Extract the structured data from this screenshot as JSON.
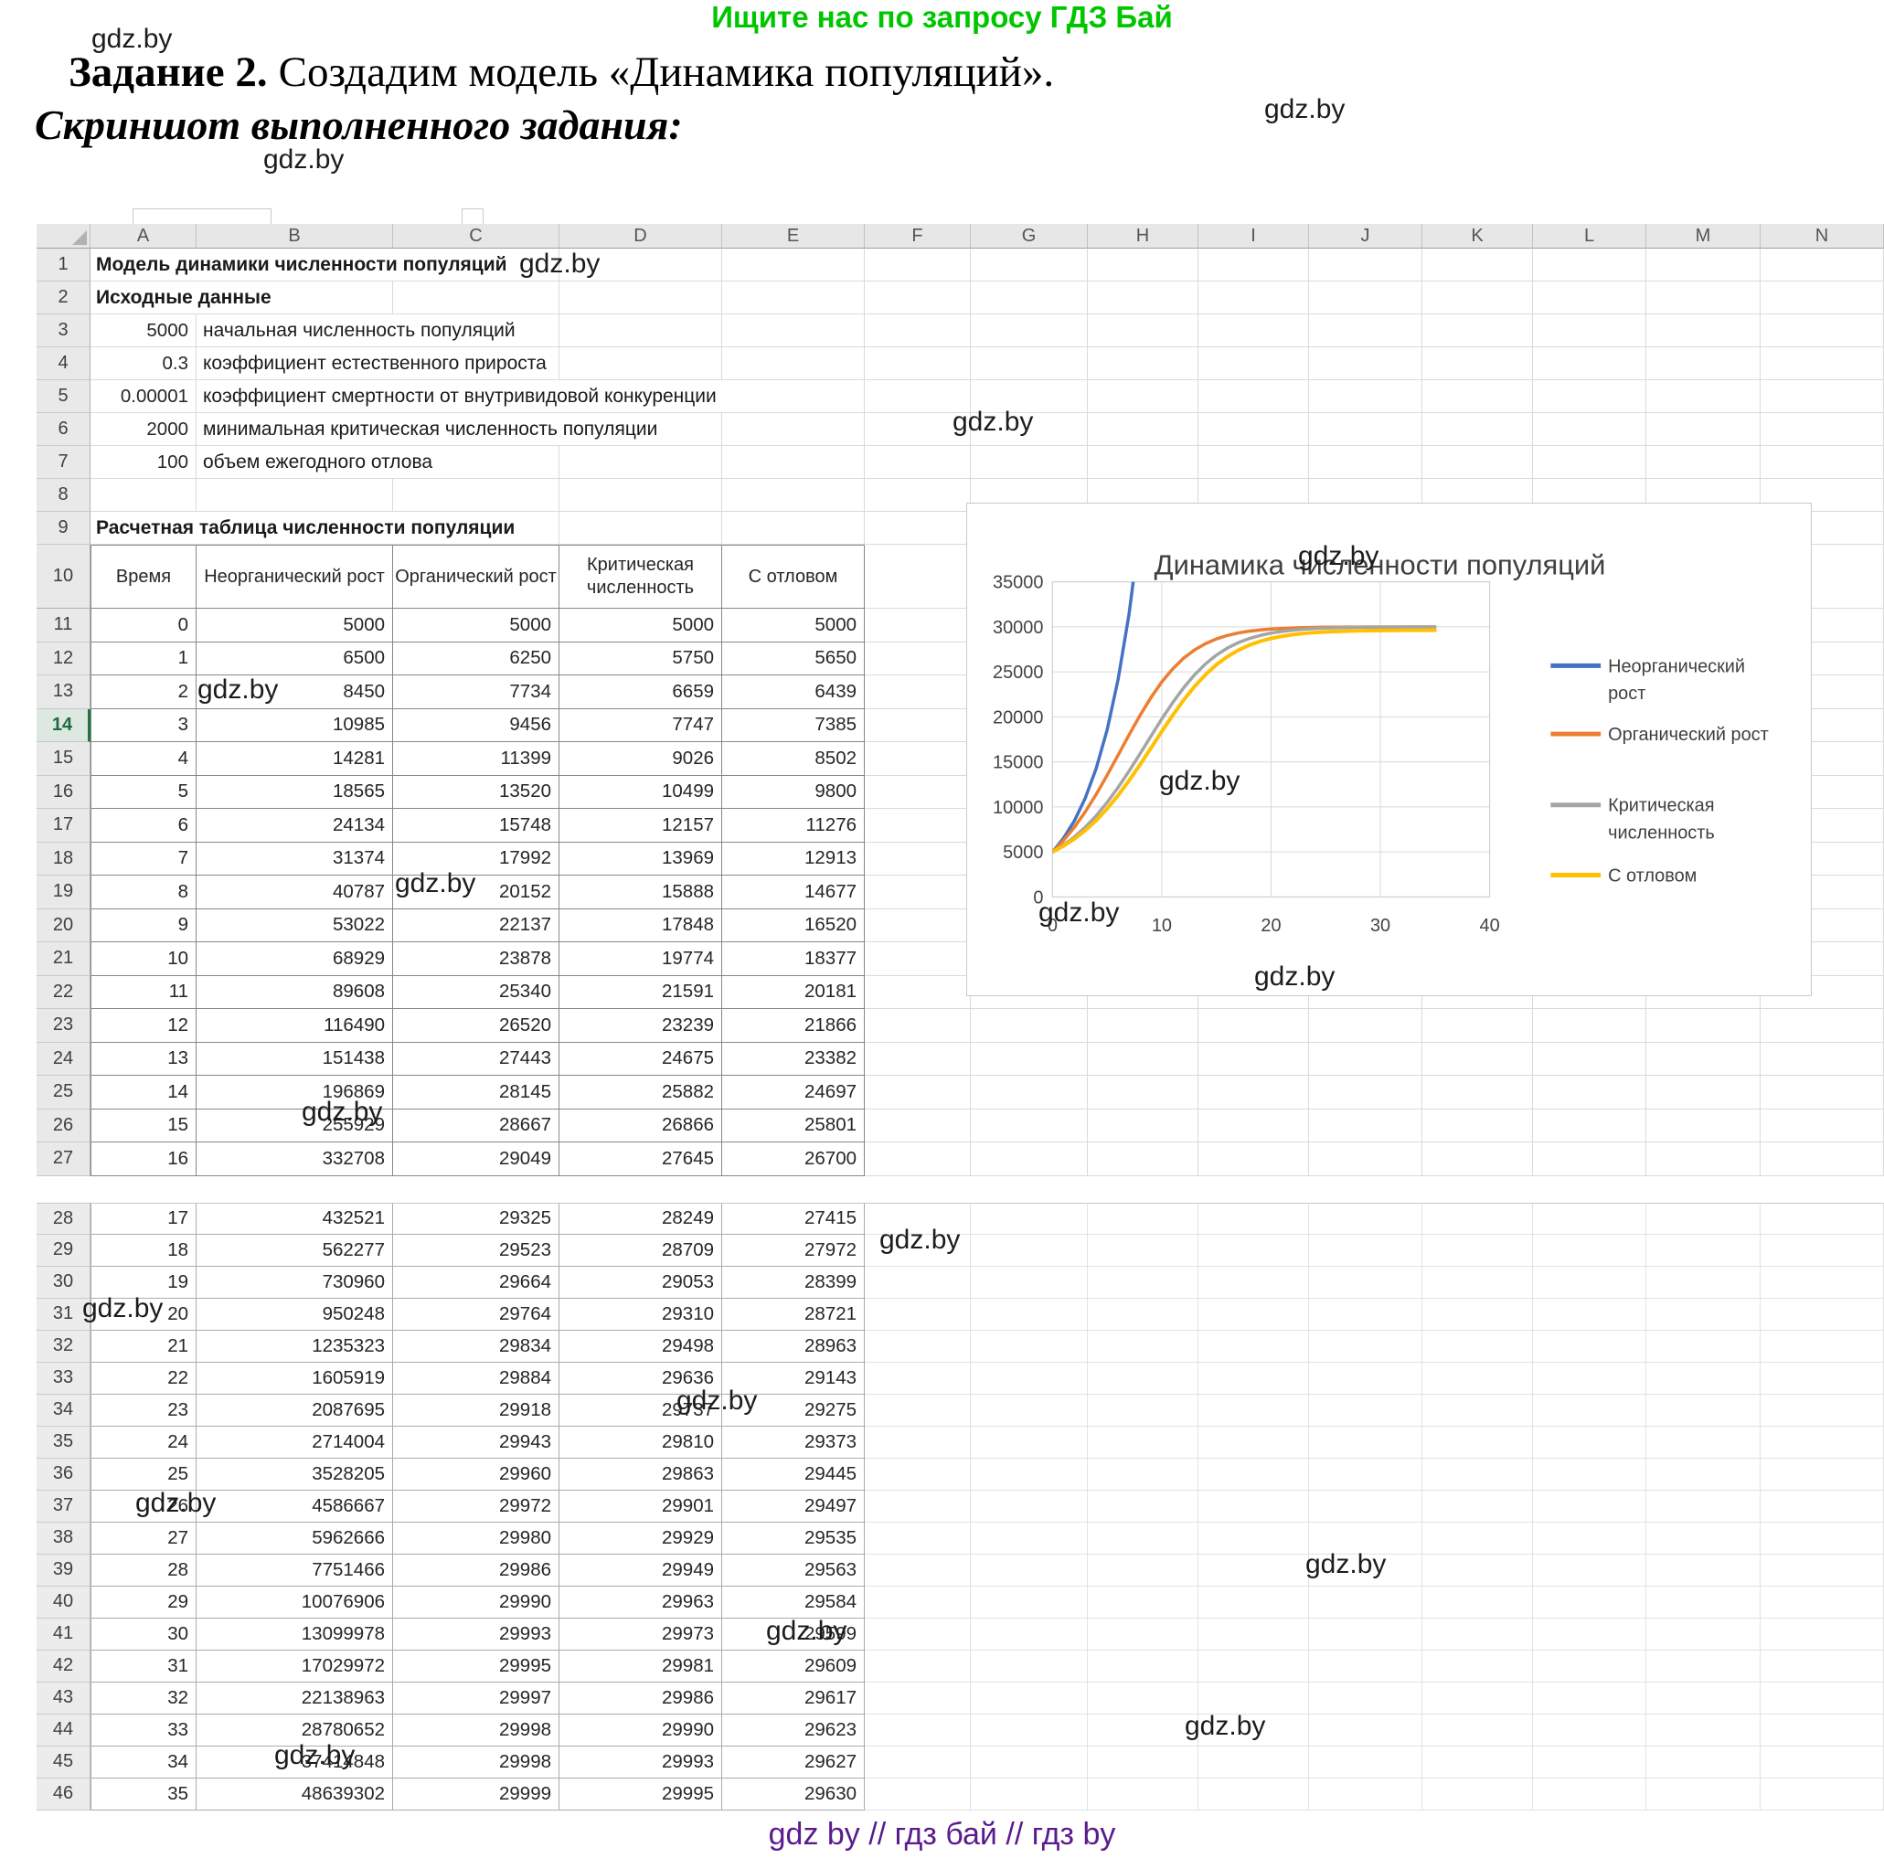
{
  "page": {
    "promo_banner": "Ищите нас по запросу ГДЗ Бай",
    "heading_bold": "Задание 2.",
    "heading_rest": "Создадим модель «Динамика популяций».",
    "subheading": "Скриншот выполненного задания:",
    "footer": "gdz by  //  гдз бай  //  гдз by",
    "watermark": "gdz.by"
  },
  "spreadsheet": {
    "column_letters": [
      "A",
      "B",
      "C",
      "D",
      "E",
      "F",
      "G",
      "H",
      "I",
      "J",
      "K",
      "L",
      "M",
      "N"
    ],
    "selected_row": 14,
    "info_rows": [
      {
        "n": "1",
        "value": "",
        "label": "Модель динамики численности популяций",
        "bold": true,
        "start": "A"
      },
      {
        "n": "2",
        "value": "",
        "label": "Исходные данные",
        "bold": true,
        "start": "A"
      },
      {
        "n": "3",
        "value": "5000",
        "label": "начальная численность популяций",
        "bold": false,
        "start": "B"
      },
      {
        "n": "4",
        "value": "0.3",
        "label": "коэффициент естественного прироста",
        "bold": false,
        "start": "B"
      },
      {
        "n": "5",
        "value": "0.00001",
        "label": "коэффициент смертности от внутривидовой конкуренции",
        "bold": false,
        "start": "B"
      },
      {
        "n": "6",
        "value": "2000",
        "label": "минимальная критическая численность популяции",
        "bold": false,
        "start": "B"
      },
      {
        "n": "7",
        "value": "100",
        "label": "объем ежегодного отлова",
        "bold": false,
        "start": "B"
      },
      {
        "n": "8",
        "value": "",
        "label": "",
        "bold": false,
        "start": "A"
      },
      {
        "n": "9",
        "value": "",
        "label": "Расчетная таблица численности популяции",
        "bold": true,
        "start": "A"
      }
    ],
    "table": {
      "headers": [
        "Время",
        "Неорганический рост",
        "Органический рост",
        "Критическая численность",
        "С отловом"
      ],
      "first_row_number": 11,
      "upper_rows_count": 17,
      "rows": [
        [
          0,
          5000,
          5000,
          5000,
          5000
        ],
        [
          1,
          6500,
          6250,
          5750,
          5650
        ],
        [
          2,
          8450,
          7734,
          6659,
          6439
        ],
        [
          3,
          10985,
          9456,
          7747,
          7385
        ],
        [
          4,
          14281,
          11399,
          9026,
          8502
        ],
        [
          5,
          18565,
          13520,
          10499,
          9800
        ],
        [
          6,
          24134,
          15748,
          12157,
          11276
        ],
        [
          7,
          31374,
          17992,
          13969,
          12913
        ],
        [
          8,
          40787,
          20152,
          15888,
          14677
        ],
        [
          9,
          53022,
          22137,
          17848,
          16520
        ],
        [
          10,
          68929,
          23878,
          19774,
          18377
        ],
        [
          11,
          89608,
          25340,
          21591,
          20181
        ],
        [
          12,
          116490,
          26520,
          23239,
          21866
        ],
        [
          13,
          151438,
          27443,
          24675,
          23382
        ],
        [
          14,
          196869,
          28145,
          25882,
          24697
        ],
        [
          15,
          255929,
          28667,
          26866,
          25801
        ],
        [
          16,
          332708,
          29049,
          27645,
          26700
        ],
        [
          17,
          432521,
          29325,
          28249,
          27415
        ],
        [
          18,
          562277,
          29523,
          28709,
          27972
        ],
        [
          19,
          730960,
          29664,
          29053,
          28399
        ],
        [
          20,
          950248,
          29764,
          29310,
          28721
        ],
        [
          21,
          1235323,
          29834,
          29498,
          28963
        ],
        [
          22,
          1605919,
          29884,
          29636,
          29143
        ],
        [
          23,
          2087695,
          29918,
          29737,
          29275
        ],
        [
          24,
          2714004,
          29943,
          29810,
          29373
        ],
        [
          25,
          3528205,
          29960,
          29863,
          29445
        ],
        [
          26,
          4586667,
          29972,
          29901,
          29497
        ],
        [
          27,
          5962666,
          29980,
          29929,
          29535
        ],
        [
          28,
          7751466,
          29986,
          29949,
          29563
        ],
        [
          29,
          10076906,
          29990,
          29963,
          29584
        ],
        [
          30,
          13099978,
          29993,
          29973,
          29599
        ],
        [
          31,
          17029972,
          29995,
          29981,
          29609
        ],
        [
          32,
          22138963,
          29997,
          29986,
          29617
        ],
        [
          33,
          28780652,
          29998,
          29990,
          29623
        ],
        [
          34,
          37414848,
          29998,
          29993,
          29627
        ],
        [
          35,
          48639302,
          29999,
          29995,
          29630
        ]
      ]
    }
  },
  "chart_data": {
    "type": "line",
    "title": "Динамика численности популяций",
    "x": [
      0,
      1,
      2,
      3,
      4,
      5,
      6,
      7,
      8,
      9,
      10,
      11,
      12,
      13,
      14,
      15,
      16,
      17,
      18,
      19,
      20,
      21,
      22,
      23,
      24,
      25,
      26,
      27,
      28,
      29,
      30,
      31,
      32,
      33,
      34,
      35
    ],
    "series": [
      {
        "name": "Неорганический рост",
        "color": "#4472c4",
        "values": [
          5000,
          6500,
          8450,
          10985,
          14281,
          18565,
          24134,
          31374,
          40787,
          53022,
          68929,
          89608,
          116490,
          151438,
          196869,
          255929,
          332708,
          432521,
          562277,
          730960,
          950248,
          1235323,
          1605919,
          2087695,
          2714004,
          3528205,
          4586667,
          5962666,
          7751466,
          10076906,
          13099978,
          17029972,
          22138963,
          28780652,
          37414848,
          48639302
        ]
      },
      {
        "name": "Органический рост",
        "color": "#ed7d31",
        "values": [
          5000,
          6250,
          7734,
          9456,
          11399,
          13520,
          15748,
          17992,
          20152,
          22137,
          23878,
          25340,
          26520,
          27443,
          28145,
          28667,
          29049,
          29325,
          29523,
          29664,
          29764,
          29834,
          29884,
          29918,
          29943,
          29960,
          29972,
          29980,
          29986,
          29990,
          29993,
          29995,
          29997,
          29998,
          29998,
          29999
        ]
      },
      {
        "name": "Критическая численность",
        "color": "#a5a5a5",
        "values": [
          5000,
          5750,
          6659,
          7747,
          9026,
          10499,
          12157,
          13969,
          15888,
          17848,
          19774,
          21591,
          23239,
          24675,
          25882,
          26866,
          27645,
          28249,
          28709,
          29053,
          29310,
          29498,
          29636,
          29737,
          29810,
          29863,
          29901,
          29929,
          29949,
          29963,
          29973,
          29981,
          29986,
          29990,
          29993,
          29995
        ]
      },
      {
        "name": "С отловом",
        "color": "#ffc000",
        "values": [
          5000,
          5650,
          6439,
          7385,
          8502,
          9800,
          11276,
          12913,
          14677,
          16520,
          18377,
          20181,
          21866,
          23382,
          24697,
          25801,
          26700,
          27415,
          27972,
          28399,
          28721,
          28963,
          29143,
          29275,
          29373,
          29445,
          29497,
          29535,
          29563,
          29584,
          29599,
          29609,
          29617,
          29623,
          29627,
          29630
        ]
      }
    ],
    "xlim": [
      0,
      40
    ],
    "ylim": [
      0,
      35000
    ],
    "xticks": [
      0,
      10,
      20,
      30,
      40
    ],
    "yticks": [
      0,
      5000,
      10000,
      15000,
      20000,
      25000,
      30000,
      35000
    ],
    "grid": true,
    "legend_position": "right"
  }
}
